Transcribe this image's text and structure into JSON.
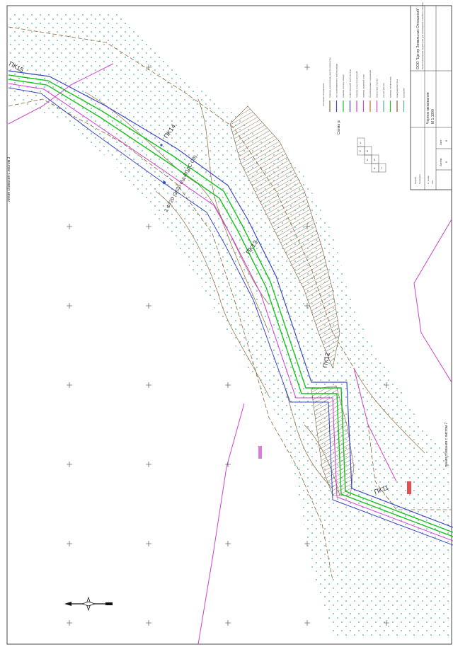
{
  "pickets": [
    "ПК15",
    "ПК14",
    "ПК13",
    "ПК12",
    "ПК11"
  ],
  "pipe_label": "2 Ф720 (2020 год ЛПДС СЗ)",
  "match_line_left": "линия сбивания с листом 3",
  "match_line_right": "линия сбивания с листом 7",
  "scheme_title": "Схема расположения листов",
  "scheme_sheets": [
    "1",
    "2",
    "3",
    "4",
    "5",
    "6",
    "7"
  ],
  "legend_title": "Условные обозначения",
  "legend_items": [
    "граница землеотвода под строительство",
    "ось проектируемого трубопровода",
    "граница полосы отвода",
    "существующий трубопровод",
    "граница зоны ограничений",
    "граница охранной зоны",
    "проектируемые сооружения",
    "земельные участки",
    "лесной массив",
    "граница лесничества",
    "зона вырубки леса",
    "кустарник"
  ],
  "title_block": {
    "company": "ООО \"Центр Земельных Отношений\"",
    "project": "Проект межевания территории для размещения линейного объекта",
    "sheet_title": "Чертеж межевания",
    "scale": "М 1:1000",
    "sheet_label": "Лист",
    "sheets_label": "Листов",
    "sheet_no": "6",
    "sheets_total": "9",
    "roles": [
      "Разраб.",
      "Проверил",
      "Н. контр.",
      "Утв."
    ]
  },
  "colors": {
    "pipe_green": "#19c21f",
    "pipe_blue": "#3b46c8",
    "pipe_magenta": "#d23ad6",
    "boundary_magenta": "#cc44cc",
    "contour_brown": "#8a6a3a",
    "tree_green": "#4fae9a",
    "hatch": "#7a5a3a"
  },
  "icons": [
    "north-arrow-icon"
  ]
}
